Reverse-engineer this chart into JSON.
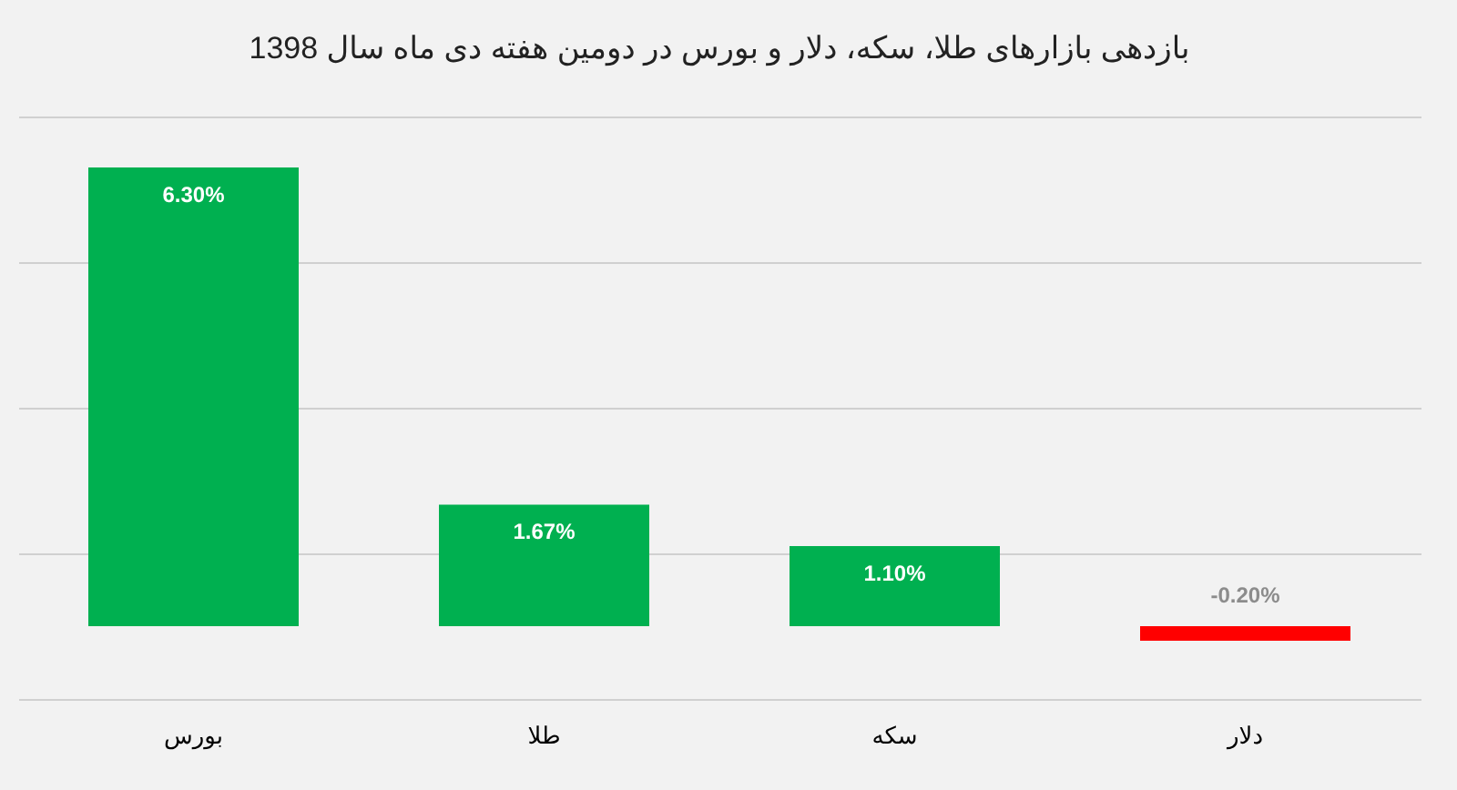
{
  "chart_data": {
    "type": "bar",
    "title": "بازدهی بازارهای طلا، سکه، دلار و بورس در دومین هفته دی ماه سال 1398",
    "categories": [
      "بورس",
      "طلا",
      "سکه",
      "دلار"
    ],
    "values": [
      6.3,
      1.67,
      1.1,
      -0.2
    ],
    "colors": [
      "#00b050",
      "#00b050",
      "#00b050",
      "#ff0000"
    ],
    "value_labels": [
      "6.30%",
      "1.67%",
      "1.10%",
      "-0.20%"
    ],
    "ylim": [
      -1,
      7
    ],
    "grid": true,
    "tick_labels": "x"
  }
}
